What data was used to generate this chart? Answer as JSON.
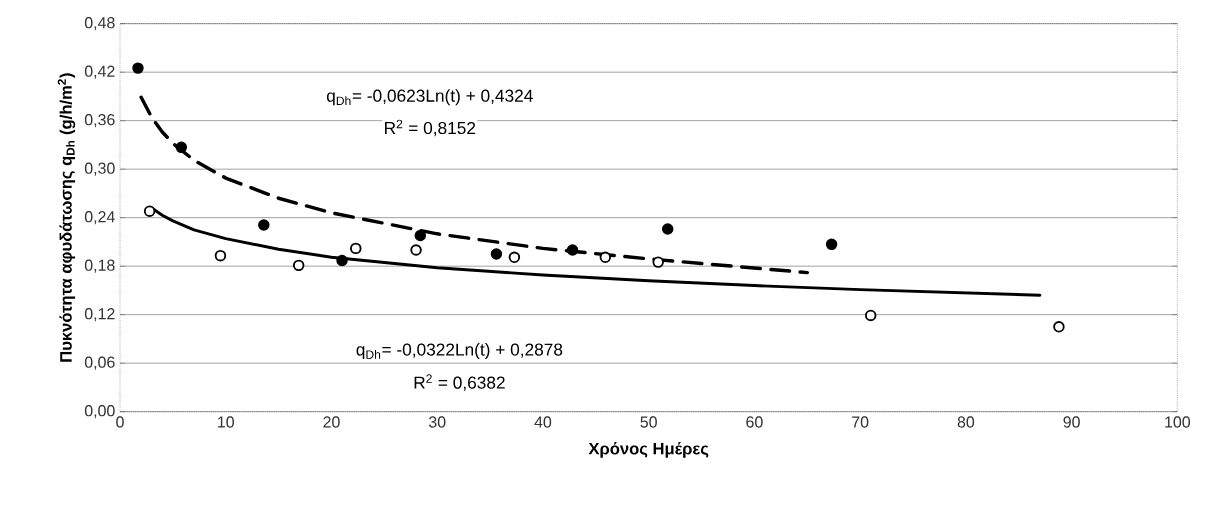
{
  "chart_data": {
    "type": "scatter",
    "xlabel": "Χρόνος Ημέρες",
    "ylabel": "Πυκνότητα αφυδάτωσης q$_{Dh}$ (g/h/m$^{2}$)",
    "xlim": [
      0,
      100
    ],
    "ylim": [
      0,
      0.48
    ],
    "xticks": [
      0,
      10,
      20,
      30,
      40,
      50,
      60,
      70,
      80,
      90,
      100
    ],
    "yticks": [
      {
        "value": 0,
        "label": "0,00"
      },
      {
        "value": 0.06,
        "label": "0,06"
      },
      {
        "value": 0.12,
        "label": "0,12"
      },
      {
        "value": 0.18,
        "label": "0,18"
      },
      {
        "value": 0.24,
        "label": "0,24"
      },
      {
        "value": 0.3,
        "label": "0,30"
      },
      {
        "value": 0.36,
        "label": "0,36"
      },
      {
        "value": 0.42,
        "label": "0,42"
      },
      {
        "value": 0.48,
        "label": "0,48"
      }
    ],
    "grid": "y",
    "series": [
      {
        "marker": "circle",
        "color": "#000000",
        "x": [
          1.7,
          5.8,
          13.6,
          21.0,
          28.4,
          35.6,
          42.8,
          51.8,
          67.3
        ],
        "values": [
          0.425,
          0.327,
          0.231,
          0.187,
          0.218,
          0.195,
          0.2,
          0.226,
          0.207
        ]
      },
      {
        "marker": "circle",
        "color": "#ffffff",
        "x": [
          2.8,
          9.5,
          16.9,
          22.3,
          28.0,
          37.3,
          45.9,
          50.9,
          71.0,
          88.8
        ],
        "values": [
          0.248,
          0.193,
          0.181,
          0.202,
          0.2,
          0.191,
          0.191,
          0.185,
          0.119,
          0.105
        ]
      },
      {
        "type": "line",
        "line_style": "dashed",
        "marker": "none",
        "color": "#000000",
        "x": [
          2,
          3,
          4,
          5,
          7,
          10,
          15,
          20,
          30,
          40,
          50,
          65
        ],
        "values": [
          0.389,
          0.364,
          0.346,
          0.332,
          0.311,
          0.289,
          0.264,
          0.246,
          0.22,
          0.202,
          0.189,
          0.172
        ]
      },
      {
        "type": "line",
        "line_style": "solid",
        "marker": "none",
        "color": "#000000",
        "x": [
          3,
          4,
          5,
          7,
          10,
          15,
          20,
          30,
          40,
          50,
          60,
          70,
          87
        ],
        "values": [
          0.252,
          0.243,
          0.236,
          0.225,
          0.214,
          0.201,
          0.191,
          0.178,
          0.169,
          0.162,
          0.156,
          0.151,
          0.144
        ]
      }
    ],
    "annotations": [
      "q$_{Dh}$= -0,0623Ln(t) + 0,4324",
      "R$^{2}$ = 0,8152",
      "q$_{Dh}$= -0,0322Ln(t) + 0,2878",
      "R$^{2}$ = 0,6382"
    ]
  }
}
